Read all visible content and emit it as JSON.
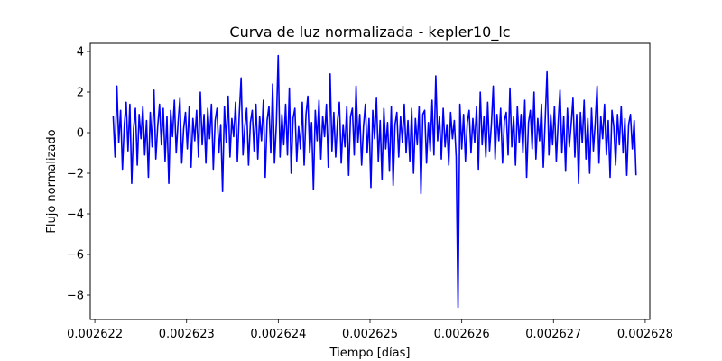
{
  "chart_data": {
    "type": "line",
    "title": "Curva de luz normalizada - kepler10_lc",
    "xlabel": "Tiempo [días]",
    "ylabel": "Flujo normalizado",
    "xlim": [
      0.00262195,
      0.00262805
    ],
    "ylim": [
      -9.2,
      4.4
    ],
    "x_ticks": [
      0.002622,
      0.002623,
      0.002624,
      0.002625,
      0.002626,
      0.002627,
      0.002628
    ],
    "x_tick_labels": [
      "0.002622",
      "0.002623",
      "0.002624",
      "0.002625",
      "0.002626",
      "0.002627",
      "0.002628"
    ],
    "y_ticks": [
      4,
      2,
      0,
      -2,
      -4,
      -6,
      -8
    ],
    "y_tick_labels": [
      "4",
      "2",
      "0",
      "−2",
      "−4",
      "−6",
      "−8"
    ],
    "grid": false,
    "legend": "none",
    "series_color": "#0000ff",
    "series": [
      {
        "x_start": 0.0026222,
        "x_end": 0.0026279,
        "notes": "dense noisy light curve",
        "values": [
          0.8,
          -1.2,
          2.3,
          -0.5,
          1.1,
          -1.8,
          0.4,
          1.5,
          -0.9,
          1.4,
          -2.5,
          0.2,
          1.2,
          -1.6,
          0.9,
          -0.3,
          1.3,
          -1.1,
          0.6,
          -2.2,
          1.0,
          -0.7,
          2.1,
          -1.3,
          0.3,
          1.4,
          -0.6,
          1.2,
          -1.4,
          0.8,
          -2.5,
          1.1,
          -0.2,
          1.6,
          -1.0,
          0.5,
          1.7,
          -1.5,
          0.2,
          1.0,
          -0.8,
          1.3,
          -1.7,
          0.7,
          -0.4,
          1.1,
          -1.2,
          2.0,
          -0.6,
          0.9,
          -1.5,
          1.2,
          -0.3,
          1.4,
          -1.8,
          0.6,
          1.2,
          -1.0,
          0.4,
          -2.9,
          1.3,
          -0.5,
          1.8,
          -1.2,
          0.7,
          -0.2,
          1.5,
          -1.4,
          0.9,
          2.7,
          -1.1,
          0.3,
          1.2,
          -1.6,
          0.5,
          1.1,
          -0.9,
          1.4,
          -1.3,
          0.8,
          -0.4,
          1.6,
          -2.2,
          0.6,
          1.3,
          -1.0,
          2.4,
          -1.5,
          0.4,
          3.8,
          -1.2,
          0.9,
          -0.6,
          1.4,
          -1.1,
          2.2,
          -2.0,
          0.7,
          1.2,
          -1.4,
          0.3,
          -0.8,
          1.5,
          -1.6,
          0.9,
          1.8,
          -1.0,
          0.5,
          -2.8,
          1.1,
          -0.4,
          1.6,
          -1.3,
          0.8,
          -0.2,
          1.4,
          -1.7,
          2.9,
          -0.9,
          1.0,
          -1.2,
          0.6,
          1.5,
          -1.5,
          0.4,
          -0.7,
          1.3,
          -2.1,
          0.8,
          1.2,
          -1.1,
          2.3,
          -0.5,
          0.9,
          -1.6,
          0.3,
          1.4,
          -1.0,
          0.7,
          -2.7,
          1.1,
          -0.3,
          1.7,
          -1.4,
          0.6,
          -2.3,
          1.2,
          -0.8,
          0.5,
          -1.9,
          1.3,
          -2.6,
          0.4,
          1.0,
          -1.2,
          0.8,
          -0.5,
          1.4,
          -1.0,
          0.6,
          -1.4,
          1.2,
          -2.0,
          0.7,
          -0.6,
          1.3,
          -3.0,
          0.9,
          1.1,
          -1.5,
          0.5,
          -0.9,
          1.6,
          -1.1,
          2.8,
          -0.4,
          0.8,
          -1.3,
          1.2,
          -0.7,
          0.4,
          -1.6,
          1.0,
          -0.3,
          0.6,
          -1.2,
          -8.6,
          1.4,
          -0.8,
          0.9,
          -1.4,
          0.5,
          1.1,
          -1.0,
          0.7,
          -0.5,
          1.3,
          -1.8,
          2.0,
          -0.6,
          0.8,
          -1.2,
          1.5,
          -0.9,
          0.4,
          2.3,
          -1.3,
          0.9,
          -0.4,
          1.2,
          -1.5,
          0.6,
          1.0,
          -1.1,
          2.2,
          -0.7,
          0.8,
          -1.6,
          1.3,
          -0.5,
          0.9,
          -1.0,
          1.6,
          -2.2,
          0.5,
          1.1,
          -0.8,
          2.0,
          -1.3,
          0.7,
          -0.4,
          1.4,
          -1.7,
          0.6,
          3.0,
          -1.1,
          0.9,
          -0.6,
          1.3,
          -1.4,
          0.5,
          2.1,
          -1.0,
          0.8,
          -1.9,
          1.2,
          -0.7,
          0.4,
          1.7,
          -1.2,
          0.9,
          -2.5,
          1.0,
          -0.5,
          1.6,
          -1.3,
          0.7,
          -2.0,
          1.2,
          -0.9,
          0.5,
          2.3,
          -1.5,
          0.8,
          -0.3,
          1.4,
          -1.1,
          0.6,
          -2.2,
          1.1,
          0.3,
          -1.6,
          0.9,
          -0.6,
          1.3,
          -1.0,
          0.7,
          -2.1,
          0.4,
          0.9,
          -0.8,
          0.6,
          -2.1
        ]
      }
    ]
  }
}
